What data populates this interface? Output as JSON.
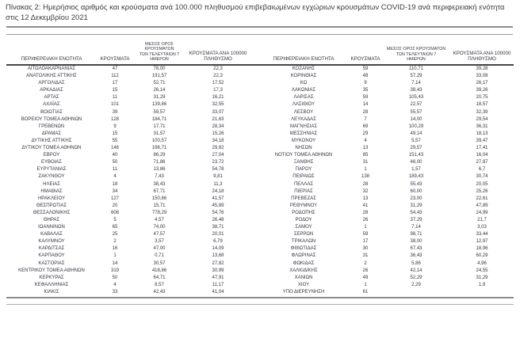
{
  "caption": "Πίνακας 2: Ημερήσιος αριθμός και κρούσματα ανά 100.000 πληθυσμού επιβεβαιωμένων εγχώριων κρουσμάτων COVID-19 ανά περιφερειακή ενότητα στις 12 Δεκεμβρίου 2021",
  "table": {
    "headers": {
      "region": "ΠΕΡΙΦΕΡΕΙΑΚΗ ΕΝΟΤΗΤΑ",
      "cases": "ΚΡΟΥΣΜΑΤΑ",
      "avg7": "ΜΕΣΟΣ ΟΡΟΣ ΚΡΟΥΣΜΑΤΩΝ\nΤΩΝ ΤΕΛΕΥΤΑΙΩΝ 7\nΗΜΕΡΩΝ",
      "per100k": "ΚΡΟΥΣΜΑΤΑ ΑΝΑ 100000\nΠΛΗΘΥΣΜΟ"
    },
    "left_rows": [
      [
        "ΑΙΤΩΛΟΑΚΑΡΝΑΝΙΑΣ",
        "47",
        "78,00",
        "22,3"
      ],
      [
        "ΑΝΑΤΟΛΙΚΗΣ ΑΤΤΙΚΗΣ",
        "112",
        "191,57",
        "22,3"
      ],
      [
        "ΑΡΓΟΛΙΔΑΣ",
        "17",
        "52,71",
        "17,52"
      ],
      [
        "ΑΡΚΑΔΙΑΣ",
        "15",
        "26,14",
        "17,3"
      ],
      [
        "ΑΡΤΑΣ",
        "11",
        "31,29",
        "16,21"
      ],
      [
        "ΑΧΑΪΑΣ",
        "101",
        "139,86",
        "32,55"
      ],
      [
        "ΒΟΙΩΤΙΑΣ",
        "39",
        "59,57",
        "33,07"
      ],
      [
        "ΒΟΡΕΙΟΥ ΤΟΜΕΑ ΑΘΗΝΩΝ",
        "128",
        "184,71",
        "21,63"
      ],
      [
        "ΓΡΕΒΕΝΩΝ",
        "9",
        "17,71",
        "28,34"
      ],
      [
        "ΔΡΑΜΑΣ",
        "15",
        "31,57",
        "15,26"
      ],
      [
        "ΔΥΤΙΚΗΣ ΑΤΤΙΚΗΣ",
        "55",
        "100,57",
        "34,18"
      ],
      [
        "ΔΥΤΙΚΟΥ ΤΟΜΕΑ ΑΘΗΝΩΝ",
        "146",
        "196,71",
        "29,82"
      ],
      [
        "ΕΒΡΟΥ",
        "40",
        "86,29",
        "27,04"
      ],
      [
        "ΕΥΒΟΙΑΣ",
        "50",
        "71,86",
        "23,72"
      ],
      [
        "ΕΥΡΥΤΑΝΙΑΣ",
        "11",
        "13,86",
        "54,78"
      ],
      [
        "ΖΑΚΥΝΘΟΥ",
        "4",
        "7,43",
        "9,81"
      ],
      [
        "ΗΛΕΙΑΣ",
        "18",
        "38,43",
        "11,3"
      ],
      [
        "ΗΜΑΘΙΑΣ",
        "34",
        "67,71",
        "24,18"
      ],
      [
        "ΗΡΑΚΛΕΙΟΥ",
        "127",
        "150,86",
        "41,57"
      ],
      [
        "ΘΕΣΠΡΩΤΙΑΣ",
        "20",
        "15,71",
        "45,89"
      ],
      [
        "ΘΕΣΣΑΛΟΝΙΚΗΣ",
        "608",
        "778,29",
        "54,76"
      ],
      [
        "ΘΗΡΑΣ",
        "5",
        "4,57",
        "26,48"
      ],
      [
        "ΙΩΑΝΝΙΝΩΝ",
        "65",
        "74,00",
        "38,71"
      ],
      [
        "ΚΑΒΑΛΑΣ",
        "25",
        "47,57",
        "20,01"
      ],
      [
        "ΚΑΛΥΜΝΟΥ",
        "2",
        "3,57",
        "6,79"
      ],
      [
        "ΚΑΡΔΙΤΣΑΣ",
        "16",
        "47,00",
        "14,09"
      ],
      [
        "ΚΑΡΠΑΘΟΥ",
        "1",
        "0,71",
        "13,68"
      ],
      [
        "ΚΑΣΤΟΡΙΑΣ",
        "14",
        "30,57",
        "27,82"
      ],
      [
        "ΚΕΝΤΡΙΚΟΥ ΤΟΜΕΑ ΑΘΗΝΩΝ",
        "319",
        "418,86",
        "30,99"
      ],
      [
        "ΚΕΡΚΥΡΑΣ",
        "50",
        "64,71",
        "47,91"
      ],
      [
        "ΚΕΦΑΛΛΗΝΙΑΣ",
        "4",
        "8,57",
        "11,17"
      ],
      [
        "ΚΙΛΚΙΣ",
        "33",
        "42,43",
        "41,04"
      ]
    ],
    "right_rows": [
      [
        "ΚΟΖΑΝΗΣ",
        "59",
        "110,71",
        "39,28"
      ],
      [
        "ΚΟΡΙΝΘΙΑΣ",
        "48",
        "57,29",
        "33,08"
      ],
      [
        "ΚΩ",
        "9",
        "7,14",
        "26,17"
      ],
      [
        "ΛΑΚΩΝΙΑΣ",
        "35",
        "38,43",
        "39,26"
      ],
      [
        "ΛΑΡΙΣΑΣ",
        "59",
        "105,43",
        "20,75"
      ],
      [
        "ΛΑΣΙΘΙΟΥ",
        "14",
        "22,57",
        "18,57"
      ],
      [
        "ΛΕΣΒΟΥ",
        "28",
        "55,57",
        "32,39"
      ],
      [
        "ΛΕΥΚΑΔΑΣ",
        "7",
        "14,00",
        "29,54"
      ],
      [
        "ΜΑΓΝΗΣΙΑΣ",
        "69",
        "100,29",
        "36,31"
      ],
      [
        "ΜΕΣΣΗΝΙΑΣ",
        "29",
        "49,14",
        "18,13"
      ],
      [
        "ΜΥΚΟΝΟΥ",
        "4",
        "5,57",
        "39,47"
      ],
      [
        "ΝΗΣΩΝ",
        "13",
        "29,57",
        "17,41"
      ],
      [
        "ΝΟΤΙΟΥ ΤΟΜΕΑ ΑΘΗΝΩΝ",
        "85",
        "151,43",
        "16,04"
      ],
      [
        "ΞΑΝΘΗΣ",
        "31",
        "46,00",
        "27,87"
      ],
      [
        "ΠΑΡΟΥ",
        "1",
        "1,57",
        "6,7"
      ],
      [
        "ΠΕΙΡΑΙΩΣ",
        "138",
        "189,43",
        "30,74"
      ],
      [
        "ΠΕΛΛΑΣ",
        "28",
        "55,43",
        "20,05"
      ],
      [
        "ΠΙΕΡΙΑΣ",
        "32",
        "60,00",
        "25,26"
      ],
      [
        "ΠΡΕΒΕΖΑΣ",
        "13",
        "23,00",
        "22,61"
      ],
      [
        "ΡΕΘΥΜΝΟΥ",
        "41",
        "31,29",
        "47,89"
      ],
      [
        "ΡΟΔΟΠΗΣ",
        "28",
        "54,43",
        "24,99"
      ],
      [
        "ΡΟΔΟΥ",
        "26",
        "37,29",
        "21,7"
      ],
      [
        "ΣΑΜΟΥ",
        "1",
        "7,14",
        "3,03"
      ],
      [
        "ΣΕΡΡΩΝ",
        "59",
        "98,71",
        "33,44"
      ],
      [
        "ΤΡΙΚΑΛΩΝ",
        "17",
        "38,00",
        "12,97"
      ],
      [
        "ΦΘΙΩΤΙΔΑΣ",
        "30",
        "67,43",
        "18,96"
      ],
      [
        "ΦΛΩΡΙΝΑΣ",
        "31",
        "36,43",
        "60,29"
      ],
      [
        "ΦΩΚΙΔΑΣ",
        "2",
        "5,86",
        "4,96"
      ],
      [
        "ΧΑΛΚΙΔΙΚΗΣ",
        "26",
        "42,14",
        "24,55"
      ],
      [
        "ΧΑΝΙΩΝ",
        "49",
        "52,29",
        "31,29"
      ],
      [
        "ΧΙΟΥ",
        "1",
        "2,29",
        "1,9"
      ],
      [
        "ΥΠΟ ΔΙΕΡΕΥΝΗΣΗ",
        "61",
        "",
        ""
      ]
    ]
  }
}
